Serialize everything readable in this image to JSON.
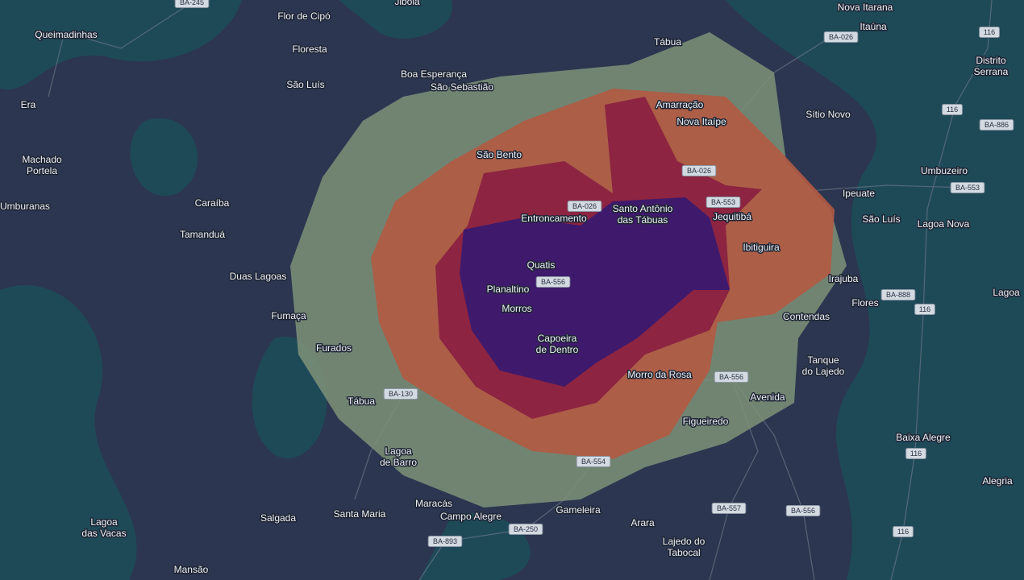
{
  "places": [
    {
      "lines": [
        "Jiboia"
      ]
    },
    {
      "lines": [
        "Flor de Cipó"
      ]
    },
    {
      "lines": [
        "Queimadinhas"
      ]
    },
    {
      "lines": [
        "Floresta"
      ]
    },
    {
      "lines": [
        "Boa Esperança"
      ]
    },
    {
      "lines": [
        "São Sebastião"
      ]
    },
    {
      "lines": [
        "São Luís"
      ]
    },
    {
      "lines": [
        "Era"
      ]
    },
    {
      "lines": [
        "Nova Itarana"
      ]
    },
    {
      "lines": [
        "Itaúna"
      ]
    },
    {
      "lines": [
        "Tábua"
      ]
    },
    {
      "lines": [
        "Distrito",
        "Serrana"
      ]
    },
    {
      "lines": [
        "Amarração"
      ]
    },
    {
      "lines": [
        "Nova Itaípe"
      ]
    },
    {
      "lines": [
        "Sítio Novo"
      ]
    },
    {
      "lines": [
        "São Bento"
      ]
    },
    {
      "lines": [
        "Machado",
        "Portela"
      ]
    },
    {
      "lines": [
        "Umbuzeiro"
      ]
    },
    {
      "lines": [
        "Ipeuate"
      ]
    },
    {
      "lines": [
        "Caraíba"
      ]
    },
    {
      "lines": [
        "Umburanas"
      ]
    },
    {
      "lines": [
        "Entroncamento"
      ]
    },
    {
      "lines": [
        "Santo Antônio",
        "das Tábuas"
      ]
    },
    {
      "lines": [
        "Jequitibá"
      ]
    },
    {
      "lines": [
        "São Luís"
      ]
    },
    {
      "lines": [
        "Lagoa Nova"
      ]
    },
    {
      "lines": [
        "Tamanduá"
      ]
    },
    {
      "lines": [
        "Ibitiguira"
      ]
    },
    {
      "lines": [
        "Quatis"
      ]
    },
    {
      "lines": [
        "Duas Lagoas"
      ]
    },
    {
      "lines": [
        "Irajuba"
      ]
    },
    {
      "lines": [
        "Planaltino"
      ]
    },
    {
      "lines": [
        "Lagoa"
      ]
    },
    {
      "lines": [
        "Flores"
      ]
    },
    {
      "lines": [
        "Morros"
      ]
    },
    {
      "lines": [
        "Fumaça"
      ]
    },
    {
      "lines": [
        "Contendas"
      ]
    },
    {
      "lines": [
        "Capoeira",
        "de Dentro"
      ]
    },
    {
      "lines": [
        "Furados"
      ]
    },
    {
      "lines": [
        "Tanque",
        "do Lajedo"
      ]
    },
    {
      "lines": [
        "Morro da Rosa"
      ]
    },
    {
      "lines": [
        "Tábua"
      ]
    },
    {
      "lines": [
        "Avenida"
      ]
    },
    {
      "lines": [
        "Figueiredo"
      ]
    },
    {
      "lines": [
        "Baixa Alegre"
      ]
    },
    {
      "lines": [
        "Lagoa",
        "de Barro"
      ]
    },
    {
      "lines": [
        "Alegria"
      ]
    },
    {
      "lines": [
        "Maracás"
      ]
    },
    {
      "lines": [
        "Santa Maria"
      ]
    },
    {
      "lines": [
        "Campo Alegre"
      ]
    },
    {
      "lines": [
        "Salgada"
      ]
    },
    {
      "lines": [
        "Gameleira"
      ]
    },
    {
      "lines": [
        "Lagoa",
        "das Vacas"
      ]
    },
    {
      "lines": [
        "Arara"
      ]
    },
    {
      "lines": [
        "Lajedo do",
        "Tabocal"
      ]
    },
    {
      "lines": [
        "Mansão"
      ]
    }
  ],
  "roads": [
    "BA-245",
    "BA-026",
    "116",
    "116",
    "BA-886",
    "BA-026",
    "BA-026",
    "BA-553",
    "BA-553",
    "BA-556",
    "BA-888",
    "116",
    "BA-556",
    "BA-130",
    "116",
    "BA-554",
    "BA-557",
    "BA-556",
    "BA-250",
    "116",
    "BA-893"
  ]
}
